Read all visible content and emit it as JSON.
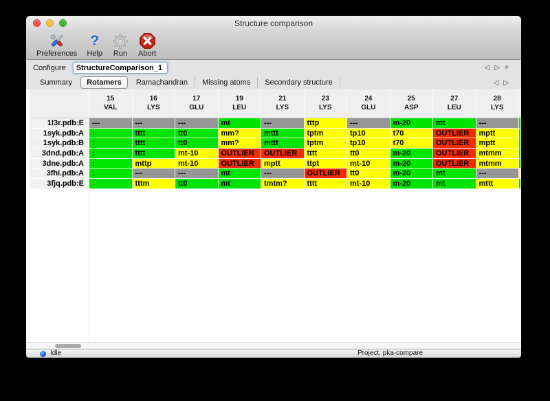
{
  "window": {
    "title": "Structure comparison"
  },
  "toolbar": {
    "items": [
      {
        "label": "Preferences",
        "icon": "tools-icon"
      },
      {
        "label": "Help",
        "icon": "help-icon"
      },
      {
        "label": "Run",
        "icon": "gear-icon"
      },
      {
        "label": "Abort",
        "icon": "stop-icon"
      }
    ]
  },
  "configure": {
    "label": "Configure",
    "value": "StructureComparison_1",
    "nav": {
      "prev": "◁",
      "next": "▷",
      "close": "×"
    }
  },
  "tabs": {
    "items": [
      {
        "label": "Summary",
        "selected": false
      },
      {
        "label": "Rotamers",
        "selected": true
      },
      {
        "label": "Ramachandran",
        "selected": false
      },
      {
        "label": "Missing atoms",
        "selected": false
      },
      {
        "label": "Secondary structure",
        "selected": false
      }
    ],
    "nav": {
      "prev": "◁",
      "next": "▷"
    }
  },
  "table": {
    "columns": [
      {
        "num": "15",
        "res": "VAL"
      },
      {
        "num": "16",
        "res": "LYS"
      },
      {
        "num": "17",
        "res": "GLU"
      },
      {
        "num": "19",
        "res": "LEU"
      },
      {
        "num": "21",
        "res": "LYS"
      },
      {
        "num": "23",
        "res": "LYS"
      },
      {
        "num": "24",
        "res": "GLU"
      },
      {
        "num": "25",
        "res": "ASP"
      },
      {
        "num": "27",
        "res": "LEU"
      },
      {
        "num": "28",
        "res": "LYS"
      }
    ],
    "rows": [
      {
        "label": "1l3r.pdb:E",
        "edge": "favored",
        "cells": [
          {
            "text": "---",
            "status": "missing"
          },
          {
            "text": "---",
            "status": "missing"
          },
          {
            "text": "---",
            "status": "missing"
          },
          {
            "text": "mt",
            "status": "favored"
          },
          {
            "text": "---",
            "status": "missing"
          },
          {
            "text": "tttp",
            "status": "allowed"
          },
          {
            "text": "---",
            "status": "missing"
          },
          {
            "text": "m-20",
            "status": "favored"
          },
          {
            "text": "mt",
            "status": "favored"
          },
          {
            "text": "---",
            "status": "missing"
          }
        ]
      },
      {
        "label": "1syk.pdb:A",
        "edge": "favored",
        "cells": [
          {
            "text": ":",
            "status": "favored"
          },
          {
            "text": "tttt",
            "status": "favored"
          },
          {
            "text": "tt0",
            "status": "favored"
          },
          {
            "text": "mm?",
            "status": "allowed"
          },
          {
            "text": "mttt",
            "status": "favored"
          },
          {
            "text": "tptm",
            "status": "allowed"
          },
          {
            "text": "tp10",
            "status": "allowed"
          },
          {
            "text": "t70",
            "status": "allowed"
          },
          {
            "text": "OUTLIER",
            "status": "outlier"
          },
          {
            "text": "mptt",
            "status": "allowed"
          }
        ]
      },
      {
        "label": "1syk.pdb:B",
        "edge": "favored",
        "cells": [
          {
            "text": ":",
            "status": "favored"
          },
          {
            "text": "tttt",
            "status": "favored"
          },
          {
            "text": "tt0",
            "status": "favored"
          },
          {
            "text": "mm?",
            "status": "allowed"
          },
          {
            "text": "mttt",
            "status": "favored"
          },
          {
            "text": "tptm",
            "status": "allowed"
          },
          {
            "text": "tp10",
            "status": "allowed"
          },
          {
            "text": "t70",
            "status": "allowed"
          },
          {
            "text": "OUTLIER",
            "status": "outlier"
          },
          {
            "text": "mptt",
            "status": "allowed"
          }
        ]
      },
      {
        "label": "3dnd.pdb:A",
        "edge": "favored",
        "cells": [
          {
            "text": ":",
            "status": "favored"
          },
          {
            "text": "tttt",
            "status": "favored"
          },
          {
            "text": "mt-10",
            "status": "allowed"
          },
          {
            "text": "OUTLIER",
            "status": "outlier"
          },
          {
            "text": "OUTLIER",
            "status": "outlier"
          },
          {
            "text": "tttt",
            "status": "allowed"
          },
          {
            "text": "tt0",
            "status": "allowed"
          },
          {
            "text": "m-20",
            "status": "favored"
          },
          {
            "text": "OUTLIER",
            "status": "outlier"
          },
          {
            "text": "mtmm",
            "status": "allowed"
          }
        ]
      },
      {
        "label": "3dne.pdb:A",
        "edge": "favored",
        "cells": [
          {
            "text": ":",
            "status": "favored"
          },
          {
            "text": "mttp",
            "status": "allowed"
          },
          {
            "text": "mt-10",
            "status": "allowed"
          },
          {
            "text": "OUTLIER",
            "status": "outlier"
          },
          {
            "text": "mptt",
            "status": "allowed"
          },
          {
            "text": "ttpt",
            "status": "allowed"
          },
          {
            "text": "mt-10",
            "status": "allowed"
          },
          {
            "text": "m-20",
            "status": "favored"
          },
          {
            "text": "OUTLIER",
            "status": "outlier"
          },
          {
            "text": "mtmm",
            "status": "allowed"
          }
        ]
      },
      {
        "label": "3fhi.pdb:A",
        "edge": "allowed",
        "cells": [
          {
            "text": ":",
            "status": "favored"
          },
          {
            "text": "---",
            "status": "missing"
          },
          {
            "text": "---",
            "status": "missing"
          },
          {
            "text": "mt",
            "status": "favored"
          },
          {
            "text": "---",
            "status": "missing"
          },
          {
            "text": "OUTLIER",
            "status": "outlier"
          },
          {
            "text": "tt0",
            "status": "allowed"
          },
          {
            "text": "m-20",
            "status": "favored"
          },
          {
            "text": "mt",
            "status": "favored"
          },
          {
            "text": "---",
            "status": "missing"
          }
        ]
      },
      {
        "label": "3fjq.pdb:E",
        "edge": "favored",
        "cells": [
          {
            "text": ":",
            "status": "favored"
          },
          {
            "text": "tttm",
            "status": "allowed"
          },
          {
            "text": "tt0",
            "status": "favored"
          },
          {
            "text": "mt",
            "status": "favored"
          },
          {
            "text": "tmtm?",
            "status": "allowed"
          },
          {
            "text": "tttt",
            "status": "allowed"
          },
          {
            "text": "mt-10",
            "status": "allowed"
          },
          {
            "text": "m-20",
            "status": "favored"
          },
          {
            "text": "mt",
            "status": "favored"
          },
          {
            "text": "mttt",
            "status": "allowed"
          }
        ]
      }
    ]
  },
  "status_bar": {
    "state": "Idle",
    "project": "Project: pka-compare"
  },
  "colors": {
    "favored": "#00e400",
    "allowed": "#ffff00",
    "outlier": "#f12d00",
    "missing": "#969696"
  }
}
